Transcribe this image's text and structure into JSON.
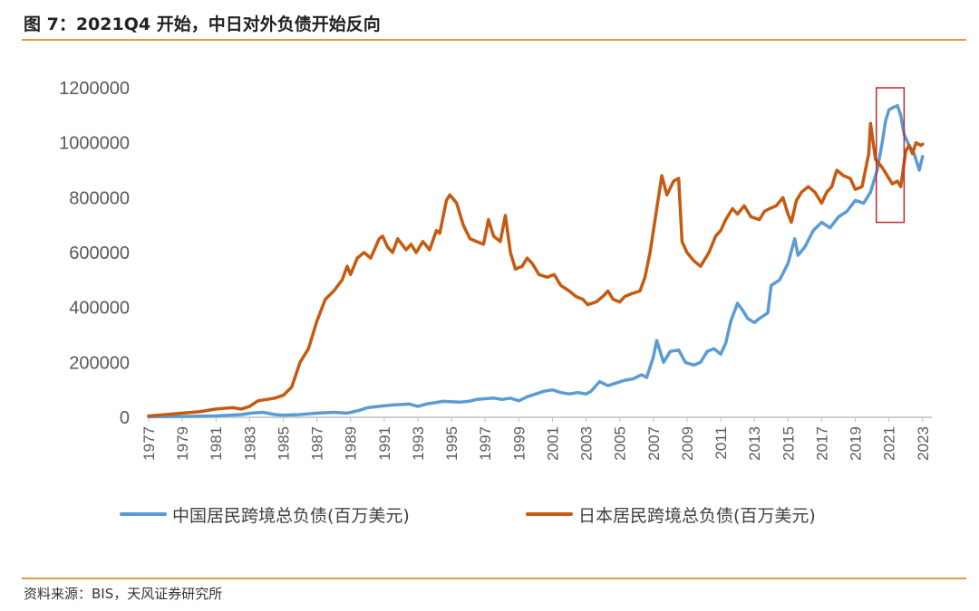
{
  "figure": {
    "title": "图 7：2021Q4 开始，中日对外负债开始反向",
    "source": "资料来源：BIS，天风证券研究所"
  },
  "colors": {
    "china": "#5b9bd5",
    "japan": "#c55a11",
    "highlight_box": "#c0282d",
    "rule": "#e39a45",
    "axis": "#bfbfbf"
  },
  "chart_data": {
    "type": "line",
    "ylim": [
      0,
      1200000
    ],
    "yticks": [
      "0",
      "200000",
      "400000",
      "600000",
      "800000",
      "1000000",
      "1200000"
    ],
    "xlim": [
      1977,
      2023.5
    ],
    "xticks": [
      "1977",
      "1979",
      "1981",
      "1983",
      "1985",
      "1987",
      "1989",
      "1991",
      "1993",
      "1995",
      "1997",
      "1999",
      "2001",
      "2003",
      "2005",
      "2007",
      "2009",
      "2011",
      "2013",
      "2015",
      "2017",
      "2019",
      "2021",
      "2023"
    ],
    "legend_position": "bottom",
    "highlight": {
      "x": [
        2020.25,
        2021.9
      ],
      "y": [
        710000,
        1200000
      ]
    },
    "series": [
      {
        "name": "中国居民跨境总负债(百万美元)",
        "color": "#5b9bd5",
        "points": [
          [
            1977,
            2000
          ],
          [
            1979,
            3000
          ],
          [
            1981,
            5000
          ],
          [
            1982.5,
            10000
          ],
          [
            1983.1,
            15000
          ],
          [
            1983.8,
            18000
          ],
          [
            1984.5,
            10000
          ],
          [
            1985,
            8000
          ],
          [
            1986,
            10000
          ],
          [
            1987,
            15000
          ],
          [
            1988,
            18000
          ],
          [
            1988.8,
            15000
          ],
          [
            1989.5,
            25000
          ],
          [
            1990,
            35000
          ],
          [
            1990.7,
            40000
          ],
          [
            1991.5,
            45000
          ],
          [
            1992.5,
            48000
          ],
          [
            1993,
            40000
          ],
          [
            1993.5,
            48000
          ],
          [
            1994.5,
            58000
          ],
          [
            1995.5,
            55000
          ],
          [
            1996,
            58000
          ],
          [
            1996.5,
            65000
          ],
          [
            1997.5,
            70000
          ],
          [
            1998,
            65000
          ],
          [
            1998.5,
            70000
          ],
          [
            1999,
            60000
          ],
          [
            1999.5,
            75000
          ],
          [
            2000.5,
            95000
          ],
          [
            2001,
            100000
          ],
          [
            2001.5,
            90000
          ],
          [
            2002,
            85000
          ],
          [
            2002.5,
            90000
          ],
          [
            2003,
            85000
          ],
          [
            2003.3,
            95000
          ],
          [
            2003.8,
            130000
          ],
          [
            2004.3,
            115000
          ],
          [
            2004.8,
            125000
          ],
          [
            2005.3,
            135000
          ],
          [
            2005.8,
            140000
          ],
          [
            2006.3,
            155000
          ],
          [
            2006.6,
            145000
          ],
          [
            2007,
            220000
          ],
          [
            2007.2,
            280000
          ],
          [
            2007.6,
            200000
          ],
          [
            2008,
            240000
          ],
          [
            2008.5,
            245000
          ],
          [
            2008.9,
            200000
          ],
          [
            2009.4,
            190000
          ],
          [
            2009.8,
            200000
          ],
          [
            2010.2,
            240000
          ],
          [
            2010.6,
            250000
          ],
          [
            2011,
            230000
          ],
          [
            2011.3,
            270000
          ],
          [
            2011.6,
            350000
          ],
          [
            2012,
            415000
          ],
          [
            2012.3,
            390000
          ],
          [
            2012.6,
            360000
          ],
          [
            2013,
            345000
          ],
          [
            2013.3,
            360000
          ],
          [
            2013.8,
            380000
          ],
          [
            2014,
            480000
          ],
          [
            2014.5,
            500000
          ],
          [
            2015,
            560000
          ],
          [
            2015.4,
            650000
          ],
          [
            2015.6,
            590000
          ],
          [
            2016,
            620000
          ],
          [
            2016.5,
            680000
          ],
          [
            2017,
            710000
          ],
          [
            2017.5,
            690000
          ],
          [
            2018,
            730000
          ],
          [
            2018.5,
            750000
          ],
          [
            2019,
            790000
          ],
          [
            2019.5,
            780000
          ],
          [
            2019.9,
            820000
          ],
          [
            2020.3,
            900000
          ],
          [
            2020.6,
            1000000
          ],
          [
            2020.8,
            1080000
          ],
          [
            2021,
            1120000
          ],
          [
            2021.3,
            1130000
          ],
          [
            2021.5,
            1135000
          ],
          [
            2021.7,
            1100000
          ],
          [
            2021.9,
            1030000
          ],
          [
            2022.2,
            990000
          ],
          [
            2022.5,
            960000
          ],
          [
            2022.8,
            900000
          ],
          [
            2023,
            950000
          ]
        ]
      },
      {
        "name": "日本居民跨境总负债(百万美元)",
        "color": "#c55a11",
        "points": [
          [
            1977,
            5000
          ],
          [
            1978,
            10000
          ],
          [
            1979,
            15000
          ],
          [
            1980,
            20000
          ],
          [
            1981,
            30000
          ],
          [
            1982,
            35000
          ],
          [
            1982.5,
            30000
          ],
          [
            1983,
            40000
          ],
          [
            1983.5,
            60000
          ],
          [
            1984,
            65000
          ],
          [
            1984.5,
            70000
          ],
          [
            1985,
            80000
          ],
          [
            1985.5,
            110000
          ],
          [
            1986,
            200000
          ],
          [
            1986.5,
            250000
          ],
          [
            1987,
            350000
          ],
          [
            1987.5,
            430000
          ],
          [
            1988,
            460000
          ],
          [
            1988.5,
            500000
          ],
          [
            1988.8,
            550000
          ],
          [
            1989,
            520000
          ],
          [
            1989.4,
            580000
          ],
          [
            1989.8,
            600000
          ],
          [
            1990.2,
            580000
          ],
          [
            1990.7,
            650000
          ],
          [
            1990.9,
            660000
          ],
          [
            1991.2,
            620000
          ],
          [
            1991.5,
            600000
          ],
          [
            1991.8,
            650000
          ],
          [
            1992.3,
            610000
          ],
          [
            1992.6,
            630000
          ],
          [
            1992.9,
            600000
          ],
          [
            1993.3,
            640000
          ],
          [
            1993.7,
            610000
          ],
          [
            1994.1,
            680000
          ],
          [
            1994.3,
            670000
          ],
          [
            1994.7,
            790000
          ],
          [
            1994.9,
            810000
          ],
          [
            1995.3,
            780000
          ],
          [
            1995.7,
            700000
          ],
          [
            1996.1,
            650000
          ],
          [
            1996.5,
            640000
          ],
          [
            1996.9,
            630000
          ],
          [
            1997.2,
            720000
          ],
          [
            1997.5,
            660000
          ],
          [
            1997.9,
            640000
          ],
          [
            1998.2,
            735000
          ],
          [
            1998.5,
            600000
          ],
          [
            1998.8,
            540000
          ],
          [
            1999.2,
            550000
          ],
          [
            1999.5,
            580000
          ],
          [
            1999.8,
            560000
          ],
          [
            2000.2,
            520000
          ],
          [
            2000.7,
            510000
          ],
          [
            2001.1,
            520000
          ],
          [
            2001.5,
            480000
          ],
          [
            2002,
            460000
          ],
          [
            2002.4,
            440000
          ],
          [
            2002.8,
            430000
          ],
          [
            2003.1,
            410000
          ],
          [
            2003.6,
            420000
          ],
          [
            2004,
            440000
          ],
          [
            2004.3,
            460000
          ],
          [
            2004.6,
            430000
          ],
          [
            2005,
            420000
          ],
          [
            2005.3,
            440000
          ],
          [
            2005.7,
            450000
          ],
          [
            2006.2,
            460000
          ],
          [
            2006.5,
            510000
          ],
          [
            2006.8,
            600000
          ],
          [
            2007.2,
            760000
          ],
          [
            2007.5,
            880000
          ],
          [
            2007.8,
            810000
          ],
          [
            2008.2,
            860000
          ],
          [
            2008.5,
            870000
          ],
          [
            2008.7,
            640000
          ],
          [
            2009,
            600000
          ],
          [
            2009.4,
            570000
          ],
          [
            2009.8,
            550000
          ],
          [
            2010.3,
            600000
          ],
          [
            2010.7,
            660000
          ],
          [
            2011,
            680000
          ],
          [
            2011.3,
            720000
          ],
          [
            2011.7,
            760000
          ],
          [
            2012,
            740000
          ],
          [
            2012.4,
            770000
          ],
          [
            2012.8,
            730000
          ],
          [
            2013.3,
            720000
          ],
          [
            2013.6,
            750000
          ],
          [
            2013.9,
            760000
          ],
          [
            2014.3,
            770000
          ],
          [
            2014.7,
            800000
          ],
          [
            2015,
            740000
          ],
          [
            2015.2,
            710000
          ],
          [
            2015.5,
            790000
          ],
          [
            2015.8,
            820000
          ],
          [
            2016.2,
            840000
          ],
          [
            2016.6,
            820000
          ],
          [
            2017,
            780000
          ],
          [
            2017.3,
            820000
          ],
          [
            2017.6,
            840000
          ],
          [
            2017.9,
            900000
          ],
          [
            2018.3,
            880000
          ],
          [
            2018.7,
            870000
          ],
          [
            2019,
            830000
          ],
          [
            2019.4,
            840000
          ],
          [
            2019.8,
            960000
          ],
          [
            2019.9,
            1070000
          ],
          [
            2020.2,
            940000
          ],
          [
            2020.6,
            910000
          ],
          [
            2020.9,
            880000
          ],
          [
            2021.2,
            850000
          ],
          [
            2021.5,
            860000
          ],
          [
            2021.7,
            840000
          ],
          [
            2022,
            970000
          ],
          [
            2022.2,
            990000
          ],
          [
            2022.4,
            960000
          ],
          [
            2022.6,
            1000000
          ],
          [
            2022.9,
            990000
          ],
          [
            2023,
            995000
          ]
        ]
      }
    ]
  }
}
